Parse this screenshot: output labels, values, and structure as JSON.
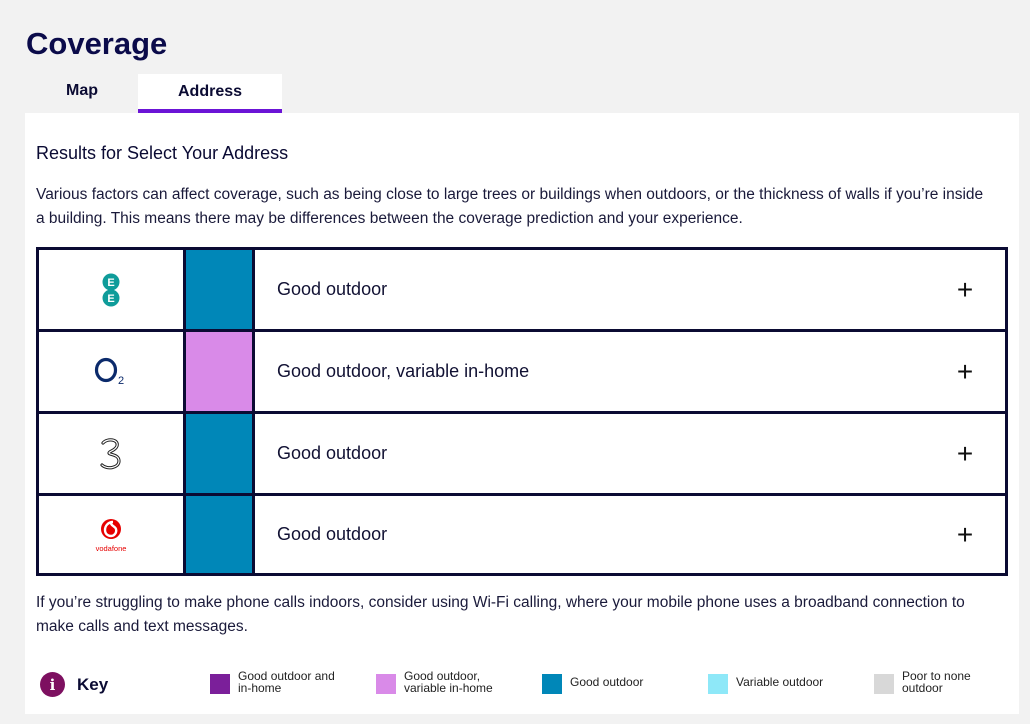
{
  "page": {
    "title": "Coverage"
  },
  "tabs": [
    {
      "label": "Map",
      "active": false
    },
    {
      "label": "Address",
      "active": true
    }
  ],
  "results": {
    "title": "Results for Select Your Address",
    "intro": "Various factors can affect coverage, such as being close to large trees or buildings when outdoors, or the thickness of walls if you’re inside a building. This means there may be differences between the coverage prediction and your experience."
  },
  "networks": [
    {
      "name": "EE",
      "logo_text": "EE",
      "icon": "ee-logo-icon",
      "status": "Good outdoor",
      "color": "#0087b8"
    },
    {
      "name": "O2",
      "logo_text": "O2",
      "icon": "o2-logo-icon",
      "status": "Good outdoor, variable in-home",
      "color": "#d98ae8"
    },
    {
      "name": "Three",
      "logo_text": "3",
      "icon": "three-logo-icon",
      "status": "Good outdoor",
      "color": "#0087b8"
    },
    {
      "name": "Vodafone",
      "logo_text": "vodafone",
      "icon": "vodafone-logo-icon",
      "status": "Good outdoor",
      "color": "#0087b8"
    }
  ],
  "expand_symbol": "+",
  "footer_note": "If you’re struggling to make phone calls indoors, consider using Wi-Fi calling, where your mobile phone uses a broadband connection to make calls and text messages.",
  "key": {
    "icon_glyph": "i",
    "label": "Key",
    "items": [
      {
        "label": "Good outdoor and in-home",
        "color": "#7b1f9a"
      },
      {
        "label": "Good outdoor, variable in-home",
        "color": "#d98ae8"
      },
      {
        "label": "Good outdoor",
        "color": "#0087b8"
      },
      {
        "label": "Variable outdoor",
        "color": "#8ee8f8"
      },
      {
        "label": "Poor to none outdoor",
        "color": "#d8d8d8"
      }
    ]
  }
}
